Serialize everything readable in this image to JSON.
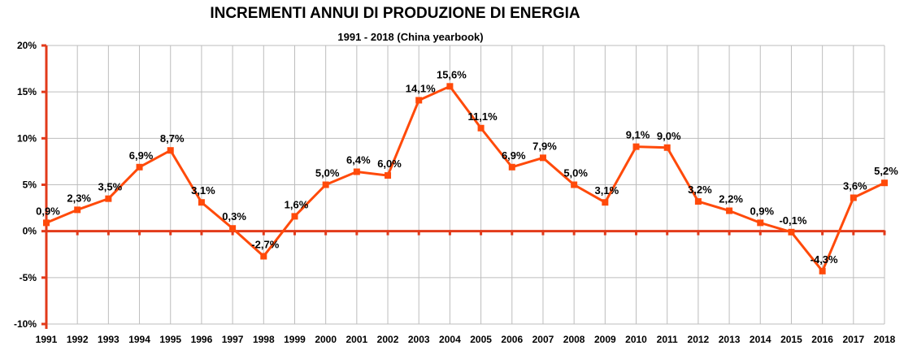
{
  "chart_data": {
    "type": "line",
    "title": "INCREMENTI ANNUI DI PRODUZIONE DI ENERGIA",
    "subtitle": "1991 - 2018 (China yearbook)",
    "xlabel": "",
    "ylabel": "",
    "categories": [
      "1991",
      "1992",
      "1993",
      "1994",
      "1995",
      "1996",
      "1997",
      "1998",
      "1999",
      "2000",
      "2001",
      "2002",
      "2003",
      "2004",
      "2005",
      "2006",
      "2007",
      "2008",
      "2009",
      "2010",
      "2011",
      "2012",
      "2013",
      "2014",
      "2015",
      "2016",
      "2017",
      "2018"
    ],
    "series": [
      {
        "values": [
          0.9,
          2.3,
          3.5,
          6.9,
          8.7,
          3.1,
          0.3,
          -2.7,
          1.6,
          5.0,
          6.4,
          6.0,
          14.1,
          15.6,
          11.1,
          6.9,
          7.9,
          5.0,
          3.1,
          9.1,
          9.0,
          3.2,
          2.2,
          0.9,
          -0.1,
          -4.3,
          3.6,
          5.2
        ],
        "labels": [
          "0,9%",
          "2,3%",
          "3,5%",
          "6,9%",
          "8,7%",
          "3,1%",
          "0,3%",
          "-2,7%",
          "1,6%",
          "5,0%",
          "6,4%",
          "6,0%",
          "14,1%",
          "15,6%",
          "11,1%",
          "6,9%",
          "7,9%",
          "5,0%",
          "3,1%",
          "9,1%",
          "9,0%",
          "3,2%",
          "2,2%",
          "0,9%",
          "-0,1%",
          "-4,3%",
          "3,6%",
          "5,2%"
        ]
      }
    ],
    "ylim": [
      -10,
      20
    ],
    "yticks": [
      20,
      15,
      10,
      5,
      0,
      -5,
      -10
    ],
    "ytick_labels": [
      "20%",
      "15%",
      "10%",
      "5%",
      "0%",
      "-5%",
      "-10%"
    ],
    "grid": true,
    "legend": "none",
    "colors": {
      "series": "#ff4a0a",
      "axis": "#e23a1a",
      "grid": "#bdbdbd"
    }
  }
}
